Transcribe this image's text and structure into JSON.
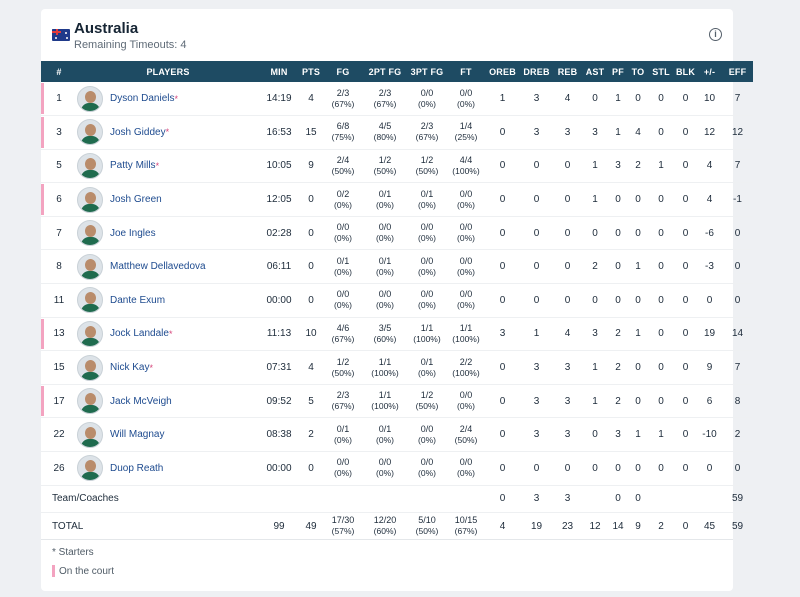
{
  "team": {
    "name": "Australia",
    "timeouts": "Remaining Timeouts: 4",
    "info_icon": "info-icon"
  },
  "colors": {
    "header_bg": "#1e4b63",
    "on_court": "#f3a3c0",
    "link": "#1e4b8f",
    "star": "#d6457a"
  },
  "columns": [
    "#",
    "PLAYERS",
    "MIN",
    "PTS",
    "FG",
    "2PT FG",
    "3PT FG",
    "FT",
    "OREB",
    "DREB",
    "REB",
    "AST",
    "PF",
    "TO",
    "STL",
    "BLK",
    "+/-",
    "EFF"
  ],
  "players": [
    {
      "num": "1",
      "name": "Dyson Daniels",
      "starter": "*",
      "on_court": true,
      "min": "14:19",
      "pts": "4",
      "fg": "2/3",
      "fg_p": "(67%)",
      "fg2": "2/3",
      "fg2_p": "(67%)",
      "fg3": "0/0",
      "fg3_p": "(0%)",
      "ft": "0/0",
      "ft_p": "(0%)",
      "oreb": "1",
      "dreb": "3",
      "reb": "4",
      "ast": "0",
      "pf": "1",
      "to": "0",
      "stl": "0",
      "blk": "0",
      "pm": "10",
      "eff": "7"
    },
    {
      "num": "3",
      "name": "Josh Giddey",
      "starter": "*",
      "on_court": true,
      "min": "16:53",
      "pts": "15",
      "fg": "6/8",
      "fg_p": "(75%)",
      "fg2": "4/5",
      "fg2_p": "(80%)",
      "fg3": "2/3",
      "fg3_p": "(67%)",
      "ft": "1/4",
      "ft_p": "(25%)",
      "oreb": "0",
      "dreb": "3",
      "reb": "3",
      "ast": "3",
      "pf": "1",
      "to": "4",
      "stl": "0",
      "blk": "0",
      "pm": "12",
      "eff": "12"
    },
    {
      "num": "5",
      "name": "Patty Mills",
      "starter": "*",
      "on_court": false,
      "min": "10:05",
      "pts": "9",
      "fg": "2/4",
      "fg_p": "(50%)",
      "fg2": "1/2",
      "fg2_p": "(50%)",
      "fg3": "1/2",
      "fg3_p": "(50%)",
      "ft": "4/4",
      "ft_p": "(100%)",
      "oreb": "0",
      "dreb": "0",
      "reb": "0",
      "ast": "1",
      "pf": "3",
      "to": "2",
      "stl": "1",
      "blk": "0",
      "pm": "4",
      "eff": "7"
    },
    {
      "num": "6",
      "name": "Josh Green",
      "starter": "",
      "on_court": true,
      "min": "12:05",
      "pts": "0",
      "fg": "0/2",
      "fg_p": "(0%)",
      "fg2": "0/1",
      "fg2_p": "(0%)",
      "fg3": "0/1",
      "fg3_p": "(0%)",
      "ft": "0/0",
      "ft_p": "(0%)",
      "oreb": "0",
      "dreb": "0",
      "reb": "0",
      "ast": "1",
      "pf": "0",
      "to": "0",
      "stl": "0",
      "blk": "0",
      "pm": "4",
      "eff": "-1"
    },
    {
      "num": "7",
      "name": "Joe Ingles",
      "starter": "",
      "on_court": false,
      "min": "02:28",
      "pts": "0",
      "fg": "0/0",
      "fg_p": "(0%)",
      "fg2": "0/0",
      "fg2_p": "(0%)",
      "fg3": "0/0",
      "fg3_p": "(0%)",
      "ft": "0/0",
      "ft_p": "(0%)",
      "oreb": "0",
      "dreb": "0",
      "reb": "0",
      "ast": "0",
      "pf": "0",
      "to": "0",
      "stl": "0",
      "blk": "0",
      "pm": "-6",
      "eff": "0"
    },
    {
      "num": "8",
      "name": "Matthew Dellavedova",
      "starter": "",
      "on_court": false,
      "min": "06:11",
      "pts": "0",
      "fg": "0/1",
      "fg_p": "(0%)",
      "fg2": "0/1",
      "fg2_p": "(0%)",
      "fg3": "0/0",
      "fg3_p": "(0%)",
      "ft": "0/0",
      "ft_p": "(0%)",
      "oreb": "0",
      "dreb": "0",
      "reb": "0",
      "ast": "2",
      "pf": "0",
      "to": "1",
      "stl": "0",
      "blk": "0",
      "pm": "-3",
      "eff": "0"
    },
    {
      "num": "11",
      "name": "Dante Exum",
      "starter": "",
      "on_court": false,
      "min": "00:00",
      "pts": "0",
      "fg": "0/0",
      "fg_p": "(0%)",
      "fg2": "0/0",
      "fg2_p": "(0%)",
      "fg3": "0/0",
      "fg3_p": "(0%)",
      "ft": "0/0",
      "ft_p": "(0%)",
      "oreb": "0",
      "dreb": "0",
      "reb": "0",
      "ast": "0",
      "pf": "0",
      "to": "0",
      "stl": "0",
      "blk": "0",
      "pm": "0",
      "eff": "0"
    },
    {
      "num": "13",
      "name": "Jock Landale",
      "starter": "*",
      "on_court": true,
      "min": "11:13",
      "pts": "10",
      "fg": "4/6",
      "fg_p": "(67%)",
      "fg2": "3/5",
      "fg2_p": "(60%)",
      "fg3": "1/1",
      "fg3_p": "(100%)",
      "ft": "1/1",
      "ft_p": "(100%)",
      "oreb": "3",
      "dreb": "1",
      "reb": "4",
      "ast": "3",
      "pf": "2",
      "to": "1",
      "stl": "0",
      "blk": "0",
      "pm": "19",
      "eff": "14"
    },
    {
      "num": "15",
      "name": "Nick Kay",
      "starter": "*",
      "on_court": false,
      "min": "07:31",
      "pts": "4",
      "fg": "1/2",
      "fg_p": "(50%)",
      "fg2": "1/1",
      "fg2_p": "(100%)",
      "fg3": "0/1",
      "fg3_p": "(0%)",
      "ft": "2/2",
      "ft_p": "(100%)",
      "oreb": "0",
      "dreb": "3",
      "reb": "3",
      "ast": "1",
      "pf": "2",
      "to": "0",
      "stl": "0",
      "blk": "0",
      "pm": "9",
      "eff": "7"
    },
    {
      "num": "17",
      "name": "Jack McVeigh",
      "starter": "",
      "on_court": true,
      "min": "09:52",
      "pts": "5",
      "fg": "2/3",
      "fg_p": "(67%)",
      "fg2": "1/1",
      "fg2_p": "(100%)",
      "fg3": "1/2",
      "fg3_p": "(50%)",
      "ft": "0/0",
      "ft_p": "(0%)",
      "oreb": "0",
      "dreb": "3",
      "reb": "3",
      "ast": "1",
      "pf": "2",
      "to": "0",
      "stl": "0",
      "blk": "0",
      "pm": "6",
      "eff": "8"
    },
    {
      "num": "22",
      "name": "Will Magnay",
      "starter": "",
      "on_court": false,
      "min": "08:38",
      "pts": "2",
      "fg": "0/1",
      "fg_p": "(0%)",
      "fg2": "0/1",
      "fg2_p": "(0%)",
      "fg3": "0/0",
      "fg3_p": "(0%)",
      "ft": "2/4",
      "ft_p": "(50%)",
      "oreb": "0",
      "dreb": "3",
      "reb": "3",
      "ast": "0",
      "pf": "3",
      "to": "1",
      "stl": "1",
      "blk": "0",
      "pm": "-10",
      "eff": "2"
    },
    {
      "num": "26",
      "name": "Duop Reath",
      "starter": "",
      "on_court": false,
      "min": "00:00",
      "pts": "0",
      "fg": "0/0",
      "fg_p": "(0%)",
      "fg2": "0/0",
      "fg2_p": "(0%)",
      "fg3": "0/0",
      "fg3_p": "(0%)",
      "ft": "0/0",
      "ft_p": "(0%)",
      "oreb": "0",
      "dreb": "0",
      "reb": "0",
      "ast": "0",
      "pf": "0",
      "to": "0",
      "stl": "0",
      "blk": "0",
      "pm": "0",
      "eff": "0"
    }
  ],
  "team_row": {
    "label": "Team/Coaches",
    "oreb": "0",
    "dreb": "3",
    "reb": "3",
    "pf": "0",
    "to": "0",
    "eff": "59"
  },
  "total_row": {
    "label": "TOTAL",
    "min": "99",
    "pts": "49",
    "fg": "17/30",
    "fg_p": "(57%)",
    "fg2": "12/20",
    "fg2_p": "(60%)",
    "fg3": "5/10",
    "fg3_p": "(50%)",
    "ft": "10/15",
    "ft_p": "(67%)",
    "oreb": "4",
    "dreb": "19",
    "reb": "23",
    "ast": "12",
    "pf": "14",
    "to": "9",
    "stl": "2",
    "blk": "0",
    "pm": "45",
    "eff": "59"
  },
  "legend": {
    "starters": "* Starters",
    "on_court": "On the court"
  }
}
